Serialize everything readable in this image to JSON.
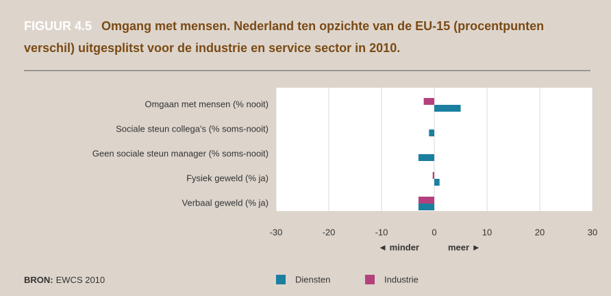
{
  "chart_data": {
    "type": "hbar",
    "figure_label": "FIGUUR 4.5",
    "title": "Omgang met mensen. Nederland ten opzichte van de EU-15 (procentpunten verschil) uitgesplitst voor de industrie en service sector in 2010.",
    "categories": [
      "Omgaan met mensen (% nooit)",
      "Sociale steun collega's (% soms-nooit)",
      "Geen sociale steun manager (% soms-nooit)",
      "Fysiek geweld (% ja)",
      "Verbaal geweld (% ja)"
    ],
    "series": [
      {
        "name": "Diensten",
        "color": "#1b7f9f",
        "values": [
          5,
          -1,
          -3,
          1,
          -3
        ]
      },
      {
        "name": "Industrie",
        "color": "#b4417e",
        "values": [
          -2,
          0,
          0,
          -0.3,
          -3
        ]
      }
    ],
    "xlim": [
      -30,
      30
    ],
    "xticks": [
      -30,
      -20,
      -10,
      0,
      10,
      20,
      30
    ],
    "grid": true,
    "annotations": [
      "◄ minder",
      "meer ►"
    ],
    "source_label": "BRON:",
    "source": "EWCS 2010"
  }
}
